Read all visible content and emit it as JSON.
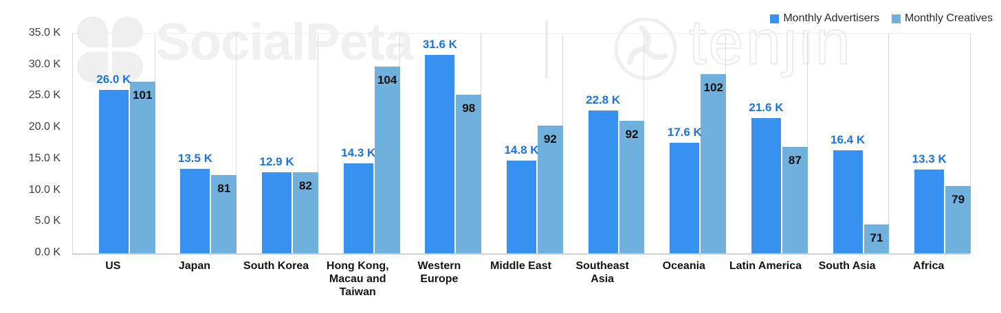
{
  "legend": [
    {
      "label": "Monthly Advertisers",
      "color": "#3691F0"
    },
    {
      "label": "Monthly Creatives",
      "color": "#6FB1DC"
    }
  ],
  "watermark": {
    "brand_left": "SocialPeta",
    "separator": "|",
    "brand_right": "tenjin",
    "color": "#efefef"
  },
  "y_axis": {
    "tick_labels": [
      "35.0 K",
      "30.0 K",
      "25.0 K",
      "20.0 K",
      "15.0 K",
      "10.0 K",
      "5.0 K",
      "0.0 K"
    ],
    "min_k": 0,
    "max_k": 35
  },
  "chart_data": {
    "type": "bar",
    "title": "",
    "xlabel": "",
    "ylabel": "",
    "ylim": [
      0,
      35
    ],
    "grid": "vertical-separators-only",
    "legend_position": "top-right",
    "categories": [
      "US",
      "Japan",
      "South Korea",
      "Hong Kong, Macau and Taiwan",
      "Western Europe",
      "Middle East",
      "Southeast Asia",
      "Oceania",
      "Latin America",
      "South Asia",
      "Africa"
    ],
    "series": [
      {
        "name": "Monthly Advertisers",
        "unit": "K",
        "axis": "left",
        "values_k": [
          26.0,
          13.5,
          12.9,
          14.3,
          31.6,
          14.8,
          22.8,
          17.6,
          21.6,
          16.4,
          13.3
        ],
        "labels": [
          "26.0 K",
          "13.5 K",
          "12.9 K",
          "14.3 K",
          "31.6 K",
          "14.8 K",
          "22.8 K",
          "17.6 K",
          "21.6 K",
          "16.4 K",
          "13.3 K"
        ]
      },
      {
        "name": "Monthly Creatives",
        "unit": "count",
        "axis": "hidden-secondary",
        "values": [
          101,
          81,
          82,
          104,
          98,
          92,
          92,
          102,
          87,
          71,
          79
        ],
        "labels": [
          "101",
          "81",
          "82",
          "104",
          "98",
          "92",
          "92",
          "102",
          "87",
          "71",
          "79"
        ],
        "plotted_equivalent_k": [
          27.4,
          12.5,
          12.9,
          29.7,
          25.3,
          20.4,
          21.1,
          28.6,
          17.0,
          4.6,
          10.7
        ]
      }
    ]
  },
  "groups": [
    {
      "category": "US",
      "adv_label": "26.0 K",
      "adv_k": 26.0,
      "cre_label": "101",
      "cre_k": 27.4
    },
    {
      "category": "Japan",
      "adv_label": "13.5 K",
      "adv_k": 13.5,
      "cre_label": "81",
      "cre_k": 12.5
    },
    {
      "category": "South Korea",
      "adv_label": "12.9 K",
      "adv_k": 12.9,
      "cre_label": "82",
      "cre_k": 12.9
    },
    {
      "category": "Hong Kong, Macau and Taiwan",
      "adv_label": "14.3 K",
      "adv_k": 14.3,
      "cre_label": "104",
      "cre_k": 29.7
    },
    {
      "category": "Western Europe",
      "adv_label": "31.6 K",
      "adv_k": 31.6,
      "cre_label": "98",
      "cre_k": 25.3
    },
    {
      "category": "Middle East",
      "adv_label": "14.8 K",
      "adv_k": 14.8,
      "cre_label": "92",
      "cre_k": 20.4
    },
    {
      "category": "Southeast Asia",
      "adv_label": "22.8 K",
      "adv_k": 22.8,
      "cre_label": "92",
      "cre_k": 21.1
    },
    {
      "category": "Oceania",
      "adv_label": "17.6 K",
      "adv_k": 17.6,
      "cre_label": "102",
      "cre_k": 28.6
    },
    {
      "category": "Latin America",
      "adv_label": "21.6 K",
      "adv_k": 21.6,
      "cre_label": "87",
      "cre_k": 17.0
    },
    {
      "category": "South Asia",
      "adv_label": "16.4 K",
      "adv_k": 16.4,
      "cre_label": "71",
      "cre_k": 4.6
    },
    {
      "category": "Africa",
      "adv_label": "13.3 K",
      "adv_k": 13.3,
      "cre_label": "79",
      "cre_k": 10.7
    }
  ]
}
